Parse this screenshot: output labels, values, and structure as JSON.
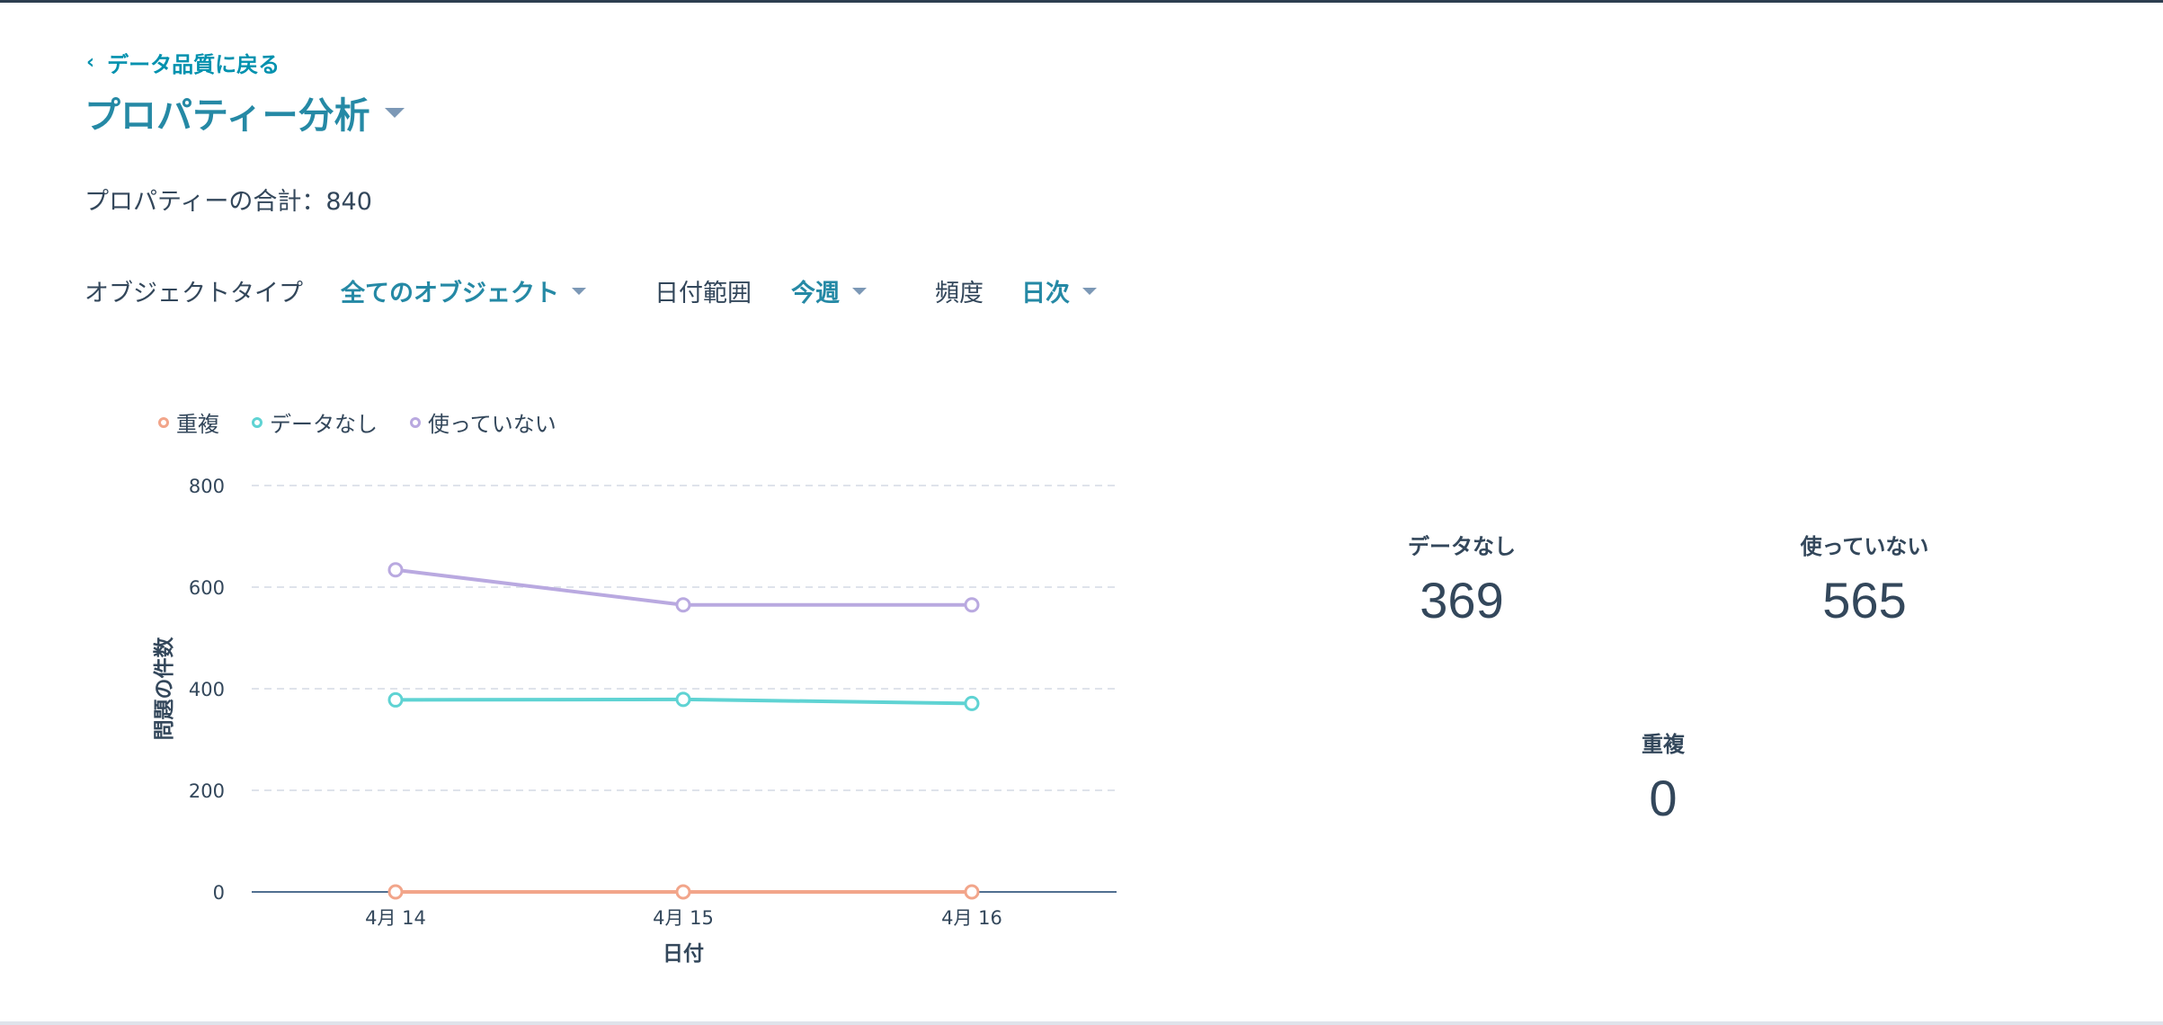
{
  "nav": {
    "back_label": "データ品質に戻る"
  },
  "header": {
    "title": "プロパティー分析"
  },
  "summary": {
    "total_text": "プロパティーの合計：840"
  },
  "filters": {
    "object_type_label": "オブジェクトタイプ",
    "object_type_value": "全てのオブジェクト",
    "date_range_label": "日付範囲",
    "date_range_value": "今週",
    "frequency_label": "頻度",
    "frequency_value": "日次"
  },
  "colors": {
    "accent": "#2589a5",
    "duplicate": "#f2a58a",
    "no_data": "#5fd3d3",
    "unused": "#b9a9e0",
    "axis": "#33475b",
    "grid": "#dfe3eb"
  },
  "kpis": [
    {
      "label": "データなし",
      "value": "369"
    },
    {
      "label": "使っていない",
      "value": "565"
    },
    {
      "label": "重複",
      "value": "0"
    }
  ],
  "chart_data": {
    "type": "line",
    "x": [
      "4月 14",
      "4月 15",
      "4月 16"
    ],
    "xlabel": "日付",
    "ylabel": "問題の件数",
    "ylim": [
      0,
      800
    ],
    "yticks": [
      0,
      200,
      400,
      600,
      800
    ],
    "grid": true,
    "legend_position": "top-left",
    "series": [
      {
        "name": "重複",
        "values": [
          0,
          0,
          0
        ],
        "color": "#f2a58a"
      },
      {
        "name": "データなし",
        "values": [
          378,
          379,
          371
        ],
        "color": "#5fd3d3"
      },
      {
        "name": "使っていない",
        "values": [
          634,
          565,
          565
        ],
        "color": "#b9a9e0"
      }
    ]
  }
}
